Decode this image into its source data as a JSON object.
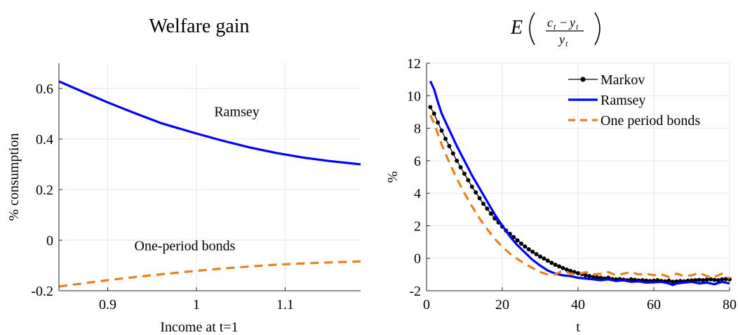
{
  "chart_data": [
    {
      "type": "line",
      "title": "Welfare gain",
      "xlabel": "Income at t=1",
      "ylabel": "% consumption",
      "xlim": [
        0.845,
        1.185
      ],
      "ylim": [
        -0.2,
        0.7
      ],
      "xticks": [
        0.9,
        1,
        1.1
      ],
      "xtick_labels": [
        "0.9",
        "1",
        "1.1"
      ],
      "yticks": [
        -0.2,
        0,
        0.2,
        0.4,
        0.6
      ],
      "ytick_labels": [
        "-0.2",
        "0",
        "0.2",
        "0.4",
        "0.6"
      ],
      "grid": true,
      "annotations": [
        {
          "text": "Ramsey",
          "x": 1.02,
          "y": 0.49
        },
        {
          "text": "One-period bonds",
          "x": 0.93,
          "y": -0.04
        }
      ],
      "series": [
        {
          "name": "Ramsey",
          "color": "#0000ff",
          "style": "solid",
          "x": [
            0.845,
            0.87,
            0.9,
            0.93,
            0.96,
            1.0,
            1.03,
            1.06,
            1.09,
            1.12,
            1.15,
            1.185
          ],
          "values": [
            0.628,
            0.59,
            0.545,
            0.503,
            0.463,
            0.422,
            0.393,
            0.367,
            0.345,
            0.327,
            0.313,
            0.3
          ]
        },
        {
          "series_kind": "dashed",
          "name": "One-period bonds",
          "color": "#e8811c",
          "style": "dashed",
          "x": [
            0.845,
            0.87,
            0.9,
            0.93,
            0.96,
            1.0,
            1.03,
            1.06,
            1.09,
            1.12,
            1.15,
            1.185
          ],
          "values": [
            -0.183,
            -0.172,
            -0.158,
            -0.146,
            -0.135,
            -0.121,
            -0.112,
            -0.104,
            -0.097,
            -0.092,
            -0.088,
            -0.084
          ]
        }
      ]
    },
    {
      "type": "line",
      "title": "E((c_t - y_t)/y_t)",
      "xlabel": "t",
      "ylabel": "%",
      "xlim": [
        0,
        80
      ],
      "ylim": [
        -2,
        12
      ],
      "xticks": [
        0,
        20,
        40,
        60,
        80
      ],
      "xtick_labels": [
        "0",
        "20",
        "40",
        "60",
        "80"
      ],
      "yticks": [
        -2,
        0,
        2,
        4,
        6,
        8,
        10,
        12
      ],
      "ytick_labels": [
        "-2",
        "0",
        "2",
        "4",
        "6",
        "8",
        "10",
        "12"
      ],
      "grid": true,
      "legend_position": "top-right",
      "series": [
        {
          "name": "Markov",
          "color": "#000000",
          "style": "solid-dots",
          "x": [
            1,
            2,
            3,
            4,
            5,
            6,
            7,
            8,
            9,
            10,
            11,
            12,
            13,
            14,
            15,
            16,
            17,
            18,
            19,
            20,
            21,
            22,
            23,
            24,
            25,
            26,
            27,
            28,
            29,
            30,
            31,
            32,
            33,
            34,
            35,
            36,
            37,
            38,
            39,
            40,
            41,
            42,
            43,
            44,
            45,
            46,
            47,
            48,
            49,
            50,
            51,
            52,
            53,
            54,
            55,
            56,
            57,
            58,
            59,
            60,
            61,
            62,
            63,
            64,
            65,
            66,
            67,
            68,
            69,
            70,
            71,
            72,
            73,
            74,
            75,
            76,
            77,
            78,
            79,
            80
          ],
          "values": [
            9.3,
            8.9,
            8.35,
            7.85,
            7.35,
            6.9,
            6.45,
            6.0,
            5.6,
            5.2,
            4.8,
            4.4,
            4.05,
            3.7,
            3.35,
            3.05,
            2.75,
            2.45,
            2.2,
            1.95,
            1.7,
            1.5,
            1.3,
            1.1,
            0.9,
            0.72,
            0.55,
            0.4,
            0.25,
            0.1,
            -0.02,
            -0.15,
            -0.28,
            -0.4,
            -0.5,
            -0.6,
            -0.7,
            -0.78,
            -0.85,
            -0.92,
            -0.98,
            -1.05,
            -1.1,
            -1.15,
            -1.18,
            -1.2,
            -1.25,
            -1.2,
            -1.28,
            -1.3,
            -1.28,
            -1.32,
            -1.35,
            -1.3,
            -1.33,
            -1.37,
            -1.35,
            -1.38,
            -1.4,
            -1.38,
            -1.35,
            -1.4,
            -1.42,
            -1.38,
            -1.45,
            -1.43,
            -1.4,
            -1.42,
            -1.38,
            -1.36,
            -1.35,
            -1.33,
            -1.35,
            -1.32,
            -1.3,
            -1.33,
            -1.35,
            -1.3,
            -1.28,
            -1.3
          ]
        },
        {
          "name": "Ramsey",
          "color": "#0000ff",
          "style": "solid",
          "x": [
            1,
            2,
            3,
            4,
            5,
            6,
            8,
            10,
            12,
            14,
            16,
            18,
            20,
            22,
            24,
            26,
            28,
            30,
            32,
            34,
            36,
            38,
            40,
            42,
            44,
            46,
            48,
            50,
            52,
            54,
            56,
            58,
            60,
            62,
            64,
            65,
            66,
            68,
            70,
            72,
            74,
            76,
            78,
            80
          ],
          "values": [
            10.9,
            10.4,
            9.6,
            8.9,
            8.4,
            7.9,
            6.9,
            6.0,
            5.1,
            4.3,
            3.5,
            2.7,
            2.0,
            1.35,
            0.8,
            0.35,
            -0.1,
            -0.45,
            -0.75,
            -0.95,
            -1.05,
            -1.1,
            -1.2,
            -1.25,
            -1.3,
            -1.35,
            -1.3,
            -1.4,
            -1.35,
            -1.45,
            -1.42,
            -1.5,
            -1.48,
            -1.45,
            -1.55,
            -1.65,
            -1.55,
            -1.5,
            -1.45,
            -1.55,
            -1.5,
            -1.6,
            -1.45,
            -1.55
          ]
        },
        {
          "name": "One period bonds",
          "color": "#e8811c",
          "style": "dashed",
          "x": [
            1,
            2,
            4,
            6,
            8,
            10,
            12,
            14,
            16,
            18,
            20,
            22,
            24,
            26,
            28,
            30,
            32,
            34,
            36,
            38,
            40,
            42,
            44,
            46,
            48,
            50,
            52,
            54,
            56,
            58,
            60,
            62,
            64,
            66,
            68,
            70,
            72,
            74,
            76,
            78,
            80
          ],
          "values": [
            8.8,
            8.3,
            7.0,
            5.9,
            4.9,
            4.0,
            3.2,
            2.45,
            1.8,
            1.2,
            0.7,
            0.3,
            -0.05,
            -0.35,
            -0.6,
            -0.85,
            -1.0,
            -1.0,
            -0.75,
            -0.95,
            -1.0,
            -0.85,
            -1.0,
            -0.95,
            -0.85,
            -1.05,
            -0.95,
            -0.85,
            -1.0,
            -0.95,
            -1.05,
            -1.0,
            -1.15,
            -0.95,
            -1.1,
            -1.05,
            -0.9,
            -1.1,
            -1.15,
            -0.95,
            -1.25
          ]
        }
      ]
    }
  ]
}
